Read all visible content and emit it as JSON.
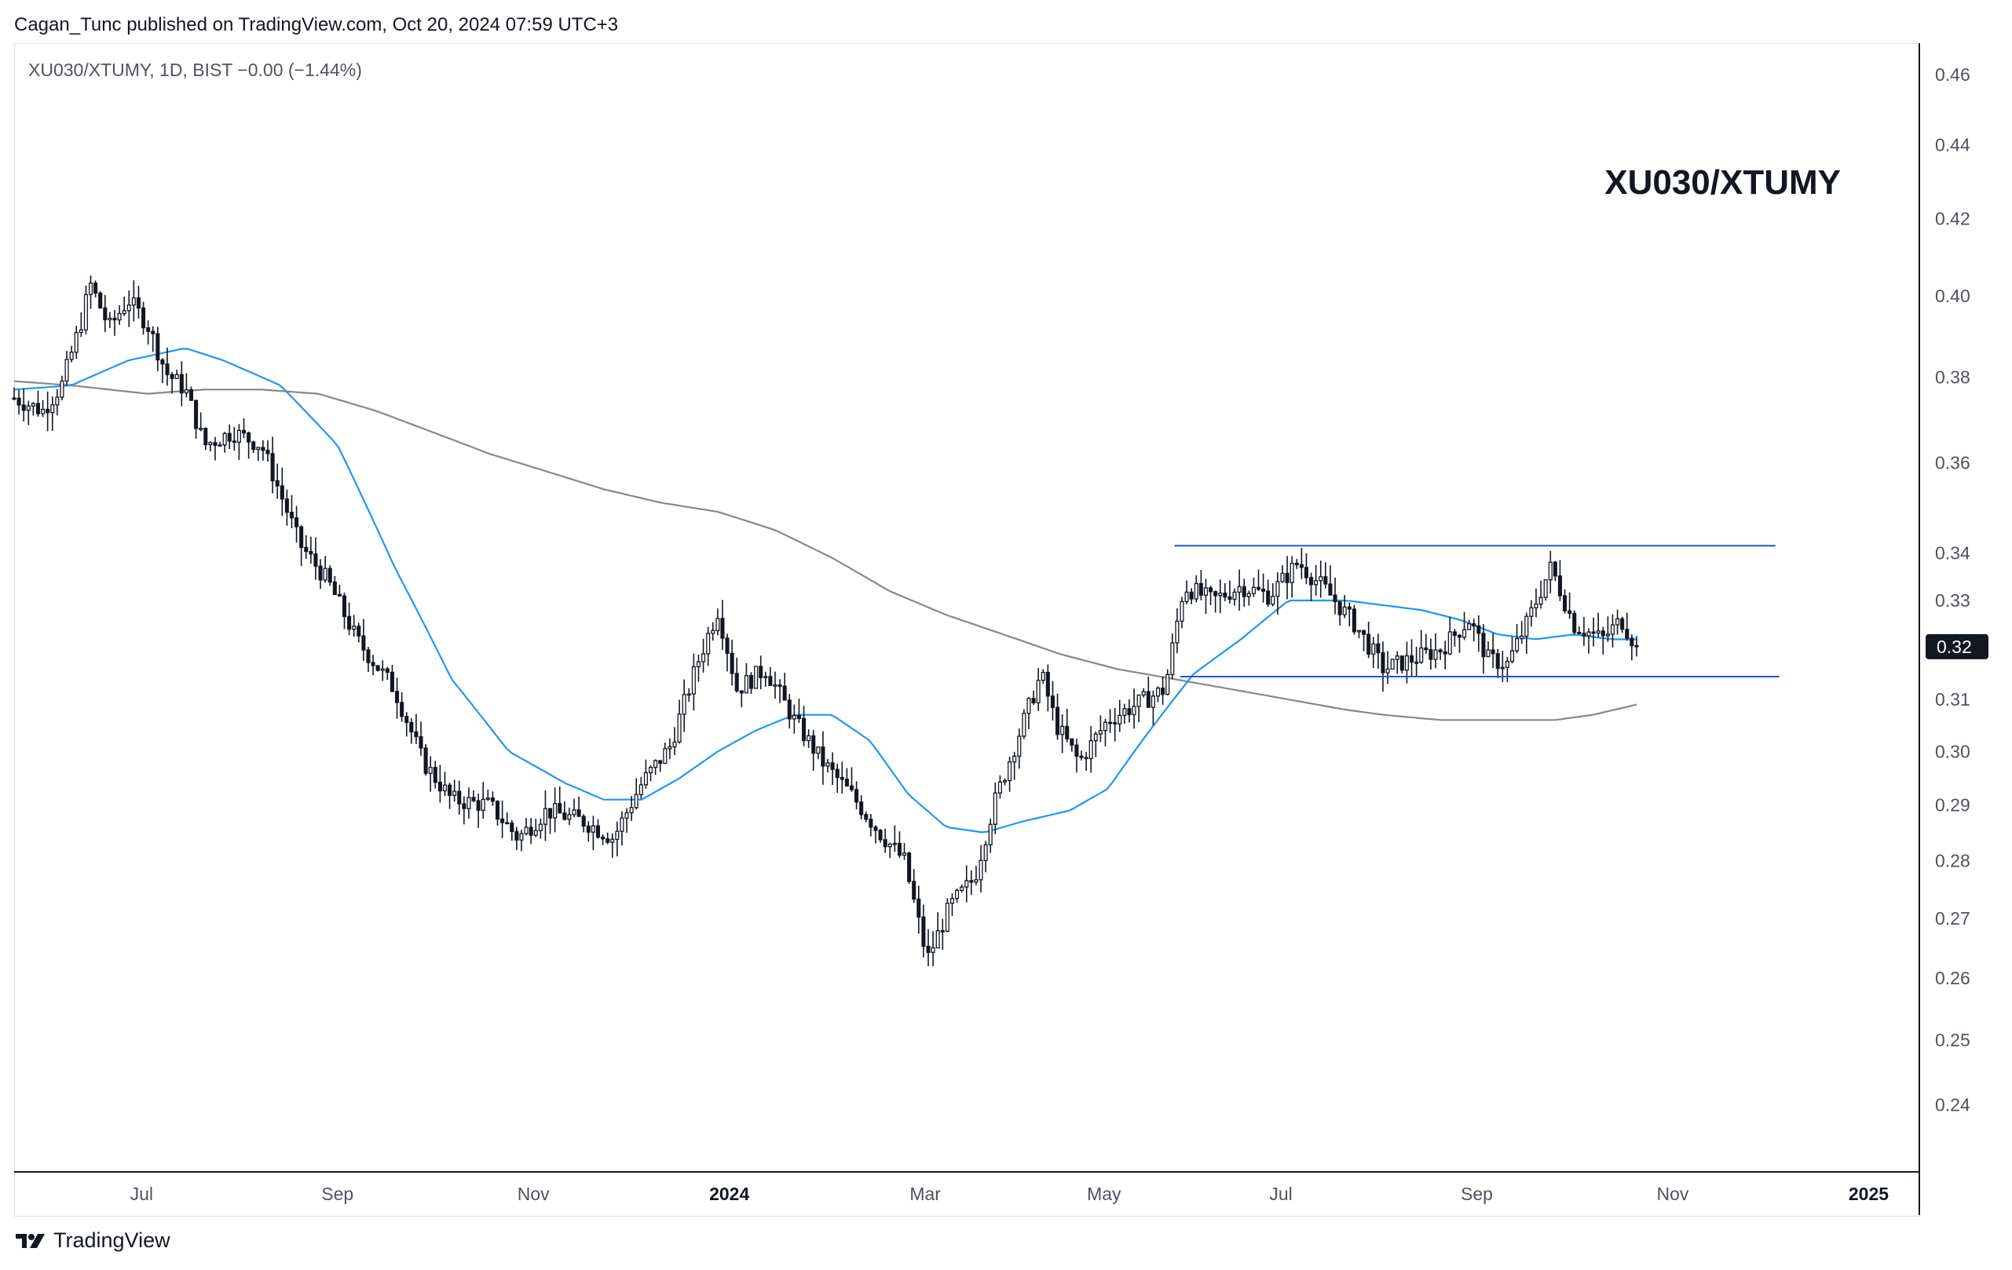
{
  "header": {
    "published_line": "Cagan_Tunc published on TradingView.com, Oct 20, 2024 07:59 UTC+3"
  },
  "legend": {
    "symbol_line": "XU030/XTUMY, 1D, BIST  −0.00 (−1.44%)"
  },
  "annotation": {
    "title": "XU030/XTUMY"
  },
  "footer": {
    "brand": "TradingView"
  },
  "colors": {
    "candle_up_fill": "#ffffff",
    "candle_down_fill": "#131722",
    "candle_outline": "#131722",
    "ma_fast": "#2196f3",
    "ma_slow": "#888888",
    "channel_lines": "#1e5cc8",
    "last_price_badge": "#131722"
  },
  "chart_data": {
    "type": "candlestick",
    "title": "XU030/XTUMY",
    "scale": "log",
    "ylim": [
      0.235,
      0.465
    ],
    "y_ticks": [
      "0.46",
      "0.44",
      "0.42",
      "0.40",
      "0.38",
      "0.36",
      "0.34",
      "0.33",
      "0.32",
      "0.31",
      "0.30",
      "0.29",
      "0.28",
      "0.27",
      "0.26",
      "0.25",
      "0.24"
    ],
    "x_ticks": [
      {
        "label": "Jul",
        "t": 0.067,
        "bold": false
      },
      {
        "label": "Sep",
        "t": 0.17,
        "bold": false
      },
      {
        "label": "Nov",
        "t": 0.273,
        "bold": false
      },
      {
        "label": "2024",
        "t": 0.376,
        "bold": true
      },
      {
        "label": "Mar",
        "t": 0.479,
        "bold": false
      },
      {
        "label": "May",
        "t": 0.573,
        "bold": false
      },
      {
        "label": "Jul",
        "t": 0.666,
        "bold": false
      },
      {
        "label": "Sep",
        "t": 0.769,
        "bold": false
      },
      {
        "label": "Nov",
        "t": 0.872,
        "bold": false
      },
      {
        "label": "2025",
        "t": 0.975,
        "bold": true
      }
    ],
    "last_price_label": "0.32",
    "last_price": 0.3205,
    "price_anchors": [
      [
        0.0,
        0.375
      ],
      [
        0.015,
        0.372
      ],
      [
        0.025,
        0.378
      ],
      [
        0.035,
        0.393
      ],
      [
        0.04,
        0.403
      ],
      [
        0.05,
        0.392
      ],
      [
        0.06,
        0.399
      ],
      [
        0.07,
        0.393
      ],
      [
        0.08,
        0.381
      ],
      [
        0.09,
        0.377
      ],
      [
        0.1,
        0.364
      ],
      [
        0.115,
        0.367
      ],
      [
        0.13,
        0.364
      ],
      [
        0.15,
        0.342
      ],
      [
        0.165,
        0.334
      ],
      [
        0.18,
        0.322
      ],
      [
        0.2,
        0.312
      ],
      [
        0.215,
        0.298
      ],
      [
        0.23,
        0.291
      ],
      [
        0.25,
        0.29
      ],
      [
        0.265,
        0.284
      ],
      [
        0.28,
        0.289
      ],
      [
        0.3,
        0.287
      ],
      [
        0.315,
        0.284
      ],
      [
        0.33,
        0.294
      ],
      [
        0.345,
        0.301
      ],
      [
        0.36,
        0.318
      ],
      [
        0.37,
        0.328
      ],
      [
        0.38,
        0.312
      ],
      [
        0.395,
        0.316
      ],
      [
        0.41,
        0.306
      ],
      [
        0.425,
        0.298
      ],
      [
        0.44,
        0.292
      ],
      [
        0.455,
        0.285
      ],
      [
        0.468,
        0.28
      ],
      [
        0.48,
        0.263
      ],
      [
        0.492,
        0.272
      ],
      [
        0.505,
        0.277
      ],
      [
        0.515,
        0.29
      ],
      [
        0.528,
        0.303
      ],
      [
        0.54,
        0.315
      ],
      [
        0.548,
        0.305
      ],
      [
        0.56,
        0.298
      ],
      [
        0.575,
        0.306
      ],
      [
        0.59,
        0.309
      ],
      [
        0.605,
        0.312
      ],
      [
        0.615,
        0.333
      ],
      [
        0.63,
        0.33
      ],
      [
        0.645,
        0.333
      ],
      [
        0.66,
        0.331
      ],
      [
        0.675,
        0.338
      ],
      [
        0.69,
        0.332
      ],
      [
        0.705,
        0.325
      ],
      [
        0.72,
        0.316
      ],
      [
        0.735,
        0.318
      ],
      [
        0.75,
        0.32
      ],
      [
        0.765,
        0.326
      ],
      [
        0.775,
        0.318
      ],
      [
        0.785,
        0.317
      ],
      [
        0.795,
        0.325
      ],
      [
        0.808,
        0.337
      ],
      [
        0.82,
        0.325
      ],
      [
        0.835,
        0.322
      ],
      [
        0.845,
        0.326
      ],
      [
        0.853,
        0.3205
      ]
    ],
    "ma_fast": [
      [
        0.0,
        0.377
      ],
      [
        0.03,
        0.378
      ],
      [
        0.06,
        0.384
      ],
      [
        0.09,
        0.387
      ],
      [
        0.11,
        0.384
      ],
      [
        0.14,
        0.378
      ],
      [
        0.17,
        0.364
      ],
      [
        0.2,
        0.337
      ],
      [
        0.23,
        0.314
      ],
      [
        0.26,
        0.3
      ],
      [
        0.29,
        0.294
      ],
      [
        0.31,
        0.291
      ],
      [
        0.33,
        0.291
      ],
      [
        0.35,
        0.295
      ],
      [
        0.37,
        0.3
      ],
      [
        0.39,
        0.304
      ],
      [
        0.41,
        0.307
      ],
      [
        0.43,
        0.307
      ],
      [
        0.45,
        0.302
      ],
      [
        0.47,
        0.292
      ],
      [
        0.49,
        0.286
      ],
      [
        0.51,
        0.285
      ],
      [
        0.53,
        0.287
      ],
      [
        0.555,
        0.289
      ],
      [
        0.575,
        0.293
      ],
      [
        0.595,
        0.303
      ],
      [
        0.62,
        0.315
      ],
      [
        0.645,
        0.322
      ],
      [
        0.67,
        0.33
      ],
      [
        0.7,
        0.33
      ],
      [
        0.72,
        0.329
      ],
      [
        0.74,
        0.328
      ],
      [
        0.76,
        0.326
      ],
      [
        0.78,
        0.323
      ],
      [
        0.8,
        0.322
      ],
      [
        0.82,
        0.323
      ],
      [
        0.84,
        0.322
      ],
      [
        0.853,
        0.322
      ]
    ],
    "ma_slow": [
      [
        0.0,
        0.379
      ],
      [
        0.03,
        0.378
      ],
      [
        0.07,
        0.376
      ],
      [
        0.1,
        0.377
      ],
      [
        0.13,
        0.377
      ],
      [
        0.16,
        0.376
      ],
      [
        0.19,
        0.372
      ],
      [
        0.22,
        0.367
      ],
      [
        0.25,
        0.362
      ],
      [
        0.28,
        0.358
      ],
      [
        0.31,
        0.354
      ],
      [
        0.34,
        0.351
      ],
      [
        0.37,
        0.349
      ],
      [
        0.4,
        0.345
      ],
      [
        0.43,
        0.339
      ],
      [
        0.46,
        0.332
      ],
      [
        0.49,
        0.327
      ],
      [
        0.52,
        0.323
      ],
      [
        0.55,
        0.319
      ],
      [
        0.58,
        0.316
      ],
      [
        0.61,
        0.314
      ],
      [
        0.64,
        0.312
      ],
      [
        0.67,
        0.31
      ],
      [
        0.7,
        0.308
      ],
      [
        0.72,
        0.307
      ],
      [
        0.75,
        0.306
      ],
      [
        0.78,
        0.306
      ],
      [
        0.81,
        0.306
      ],
      [
        0.83,
        0.307
      ],
      [
        0.853,
        0.309
      ]
    ],
    "channel": {
      "upper": {
        "t_start": 0.61,
        "t_end": 0.926,
        "value": 0.3416
      },
      "lower": {
        "t_start": 0.613,
        "t_end": 0.928,
        "value": 0.3145
      }
    }
  }
}
